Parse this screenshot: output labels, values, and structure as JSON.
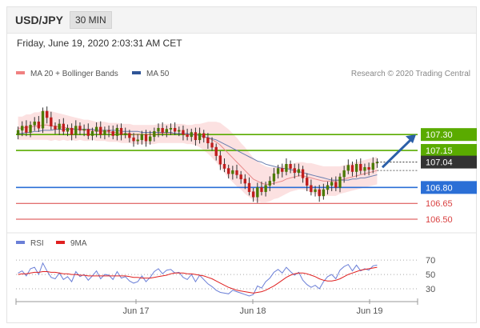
{
  "header": {
    "symbol": "USD/JPY",
    "timeframe": "30 MIN",
    "datetime": "Friday, June 19, 2020 2:03:31 AM CET"
  },
  "legend": {
    "items": [
      {
        "label": "MA 20 + Bollinger Bands",
        "color": "#f08080"
      },
      {
        "label": "MA 50",
        "color": "#2f5597"
      }
    ],
    "credit": "Research © 2020 Trading Central"
  },
  "rsi_legend": {
    "items": [
      {
        "label": "RSI",
        "color": "#6b7fd7"
      },
      {
        "label": "9MA",
        "color": "#e02020"
      }
    ]
  },
  "colors": {
    "resistance": "#5aab00",
    "support": "#2b6fd6",
    "weak_support": "#d94040",
    "last_price": "#333333",
    "bull": "#4a7a00",
    "bear": "#bf1d1d"
  },
  "chart_data": [
    {
      "type": "candlestick",
      "ylim": [
        106.44,
        107.8
      ],
      "x_ticks": [
        "Jun 17",
        "Jun 18",
        "Jun 19"
      ],
      "last_price": 107.04,
      "levels": [
        {
          "value": 107.3,
          "label": "107.30",
          "kind": "resistance",
          "tagged": true
        },
        {
          "value": 107.15,
          "label": "107.15",
          "kind": "resistance",
          "tagged": true
        },
        {
          "value": 106.8,
          "label": "106.80",
          "kind": "support",
          "tagged": true
        },
        {
          "value": 106.65,
          "label": "106.65",
          "kind": "weak_support",
          "tagged": false
        },
        {
          "value": 106.5,
          "label": "106.50",
          "kind": "weak_support",
          "tagged": false
        }
      ],
      "close": [
        107.34,
        107.38,
        107.32,
        107.39,
        107.42,
        107.36,
        107.52,
        107.46,
        107.38,
        107.35,
        107.4,
        107.33,
        107.36,
        107.3,
        107.38,
        107.34,
        107.35,
        107.29,
        107.33,
        107.37,
        107.3,
        107.34,
        107.33,
        107.29,
        107.36,
        107.3,
        107.31,
        107.27,
        107.24,
        107.25,
        107.3,
        107.24,
        107.28,
        107.33,
        107.36,
        107.32,
        107.35,
        107.36,
        107.33,
        107.34,
        107.3,
        107.28,
        107.32,
        107.25,
        107.31,
        107.27,
        107.22,
        107.18,
        107.1,
        107.02,
        106.98,
        106.93,
        106.96,
        106.92,
        106.88,
        106.84,
        106.76,
        106.71,
        106.8,
        106.76,
        106.82,
        106.86,
        106.93,
        106.98,
        106.95,
        107.02,
        106.98,
        106.94,
        106.97,
        106.89,
        106.82,
        106.76,
        106.78,
        106.72,
        106.78,
        106.82,
        106.85,
        106.8,
        106.9,
        106.96,
        107.01,
        106.95,
        107.02,
        106.96,
        106.99,
        106.97,
        107.03,
        107.04
      ],
      "open": [
        107.3,
        107.34,
        107.38,
        107.32,
        107.39,
        107.42,
        107.36,
        107.52,
        107.46,
        107.38,
        107.35,
        107.4,
        107.33,
        107.36,
        107.3,
        107.38,
        107.34,
        107.35,
        107.29,
        107.33,
        107.37,
        107.3,
        107.34,
        107.33,
        107.29,
        107.36,
        107.3,
        107.31,
        107.27,
        107.24,
        107.25,
        107.3,
        107.24,
        107.28,
        107.33,
        107.36,
        107.32,
        107.35,
        107.36,
        107.33,
        107.34,
        107.3,
        107.28,
        107.32,
        107.25,
        107.31,
        107.27,
        107.22,
        107.18,
        107.1,
        107.02,
        106.98,
        106.93,
        106.96,
        106.92,
        106.88,
        106.84,
        106.76,
        106.71,
        106.8,
        106.76,
        106.82,
        106.86,
        106.93,
        106.98,
        106.95,
        107.02,
        106.98,
        106.94,
        106.97,
        106.89,
        106.82,
        106.76,
        106.78,
        106.72,
        106.78,
        106.82,
        106.85,
        106.8,
        106.9,
        106.96,
        107.01,
        106.95,
        107.02,
        106.96,
        106.99,
        106.97,
        107.03
      ],
      "ma20": [
        107.36,
        107.36,
        107.37,
        107.37,
        107.38,
        107.38,
        107.39,
        107.39,
        107.38,
        107.38,
        107.37,
        107.37,
        107.36,
        107.36,
        107.35,
        107.35,
        107.34,
        107.34,
        107.34,
        107.33,
        107.33,
        107.33,
        107.32,
        107.32,
        107.32,
        107.31,
        107.31,
        107.31,
        107.3,
        107.3,
        107.3,
        107.3,
        107.3,
        107.3,
        107.31,
        107.31,
        107.31,
        107.31,
        107.31,
        107.31,
        107.31,
        107.3,
        107.3,
        107.3,
        107.29,
        107.28,
        107.27,
        107.25,
        107.23,
        107.2,
        107.16,
        107.12,
        107.08,
        107.04,
        107.0,
        106.96,
        106.92,
        106.88,
        106.86,
        106.84,
        106.83,
        106.83,
        106.84,
        106.85,
        106.86,
        106.88,
        106.89,
        106.9,
        106.91,
        106.91,
        106.9,
        106.89,
        106.88,
        106.87,
        106.86,
        106.86,
        106.86,
        106.86,
        106.87,
        106.88,
        106.89,
        106.9,
        106.91,
        106.92,
        106.93,
        106.94,
        106.95,
        106.96
      ],
      "ma50": [
        107.31,
        107.31,
        107.32,
        107.32,
        107.33,
        107.33,
        107.34,
        107.34,
        107.34,
        107.35,
        107.35,
        107.35,
        107.35,
        107.35,
        107.35,
        107.35,
        107.35,
        107.35,
        107.35,
        107.34,
        107.34,
        107.34,
        107.34,
        107.34,
        107.34,
        107.33,
        107.33,
        107.33,
        107.33,
        107.33,
        107.32,
        107.32,
        107.32,
        107.32,
        107.32,
        107.32,
        107.32,
        107.32,
        107.31,
        107.31,
        107.31,
        107.31,
        107.3,
        107.3,
        107.29,
        107.28,
        107.27,
        107.26,
        107.25,
        107.23,
        107.21,
        107.19,
        107.17,
        107.15,
        107.13,
        107.11,
        107.09,
        107.07,
        107.05,
        107.04,
        107.02,
        107.01,
        107.0,
        106.99,
        106.98,
        106.98,
        106.97,
        106.96,
        106.95,
        106.94,
        106.93,
        106.92,
        106.91,
        106.9,
        106.89,
        106.88,
        106.87,
        106.87,
        106.87,
        106.87,
        106.87,
        106.88,
        106.88,
        106.89,
        106.89,
        106.9,
        106.91,
        106.92
      ],
      "bb_width": [
        0.11,
        0.11,
        0.12,
        0.12,
        0.13,
        0.13,
        0.14,
        0.14,
        0.14,
        0.13,
        0.13,
        0.12,
        0.12,
        0.11,
        0.11,
        0.1,
        0.1,
        0.1,
        0.09,
        0.09,
        0.09,
        0.09,
        0.09,
        0.09,
        0.09,
        0.09,
        0.09,
        0.09,
        0.09,
        0.09,
        0.09,
        0.09,
        0.09,
        0.09,
        0.09,
        0.09,
        0.09,
        0.09,
        0.09,
        0.09,
        0.09,
        0.09,
        0.09,
        0.1,
        0.11,
        0.13,
        0.15,
        0.17,
        0.19,
        0.21,
        0.22,
        0.23,
        0.23,
        0.23,
        0.22,
        0.22,
        0.21,
        0.2,
        0.19,
        0.18,
        0.17,
        0.16,
        0.15,
        0.15,
        0.14,
        0.14,
        0.13,
        0.13,
        0.13,
        0.13,
        0.13,
        0.14,
        0.14,
        0.14,
        0.14,
        0.14,
        0.14,
        0.14,
        0.13,
        0.13,
        0.13,
        0.13,
        0.13,
        0.13,
        0.13,
        0.13,
        0.13,
        0.13
      ],
      "forecast_target": 107.3
    },
    {
      "type": "line",
      "title": "RSI",
      "ylim": [
        20,
        78
      ],
      "y_ticks": [
        70,
        50,
        30
      ],
      "series": [
        {
          "name": "RSI",
          "values": [
            52,
            55,
            48,
            58,
            60,
            50,
            66,
            55,
            46,
            44,
            52,
            43,
            47,
            40,
            54,
            47,
            50,
            42,
            48,
            55,
            44,
            50,
            49,
            43,
            54,
            45,
            47,
            41,
            38,
            40,
            48,
            40,
            46,
            54,
            58,
            51,
            56,
            57,
            52,
            53,
            46,
            43,
            50,
            40,
            49,
            43,
            37,
            33,
            28,
            25,
            24,
            23,
            28,
            26,
            24,
            22,
            20,
            22,
            34,
            31,
            40,
            45,
            53,
            57,
            52,
            60,
            54,
            49,
            53,
            42,
            36,
            32,
            35,
            30,
            40,
            47,
            50,
            44,
            56,
            61,
            64,
            55,
            63,
            55,
            58,
            56,
            62,
            63
          ]
        },
        {
          "name": "9MA",
          "values": [
            50,
            51,
            51,
            52,
            53,
            53,
            54,
            54,
            53,
            53,
            52,
            51,
            51,
            50,
            50,
            49,
            49,
            48,
            48,
            48,
            48,
            48,
            48,
            48,
            48,
            48,
            48,
            47,
            46,
            46,
            45,
            45,
            45,
            46,
            47,
            48,
            49,
            51,
            52,
            52,
            52,
            51,
            51,
            50,
            49,
            48,
            46,
            44,
            41,
            38,
            35,
            32,
            30,
            28,
            27,
            26,
            25,
            24,
            25,
            26,
            28,
            31,
            34,
            38,
            42,
            46,
            49,
            51,
            52,
            52,
            51,
            49,
            47,
            44,
            42,
            41,
            41,
            42,
            44,
            47,
            50,
            52,
            54,
            56,
            57,
            58,
            59,
            60
          ]
        }
      ]
    }
  ]
}
